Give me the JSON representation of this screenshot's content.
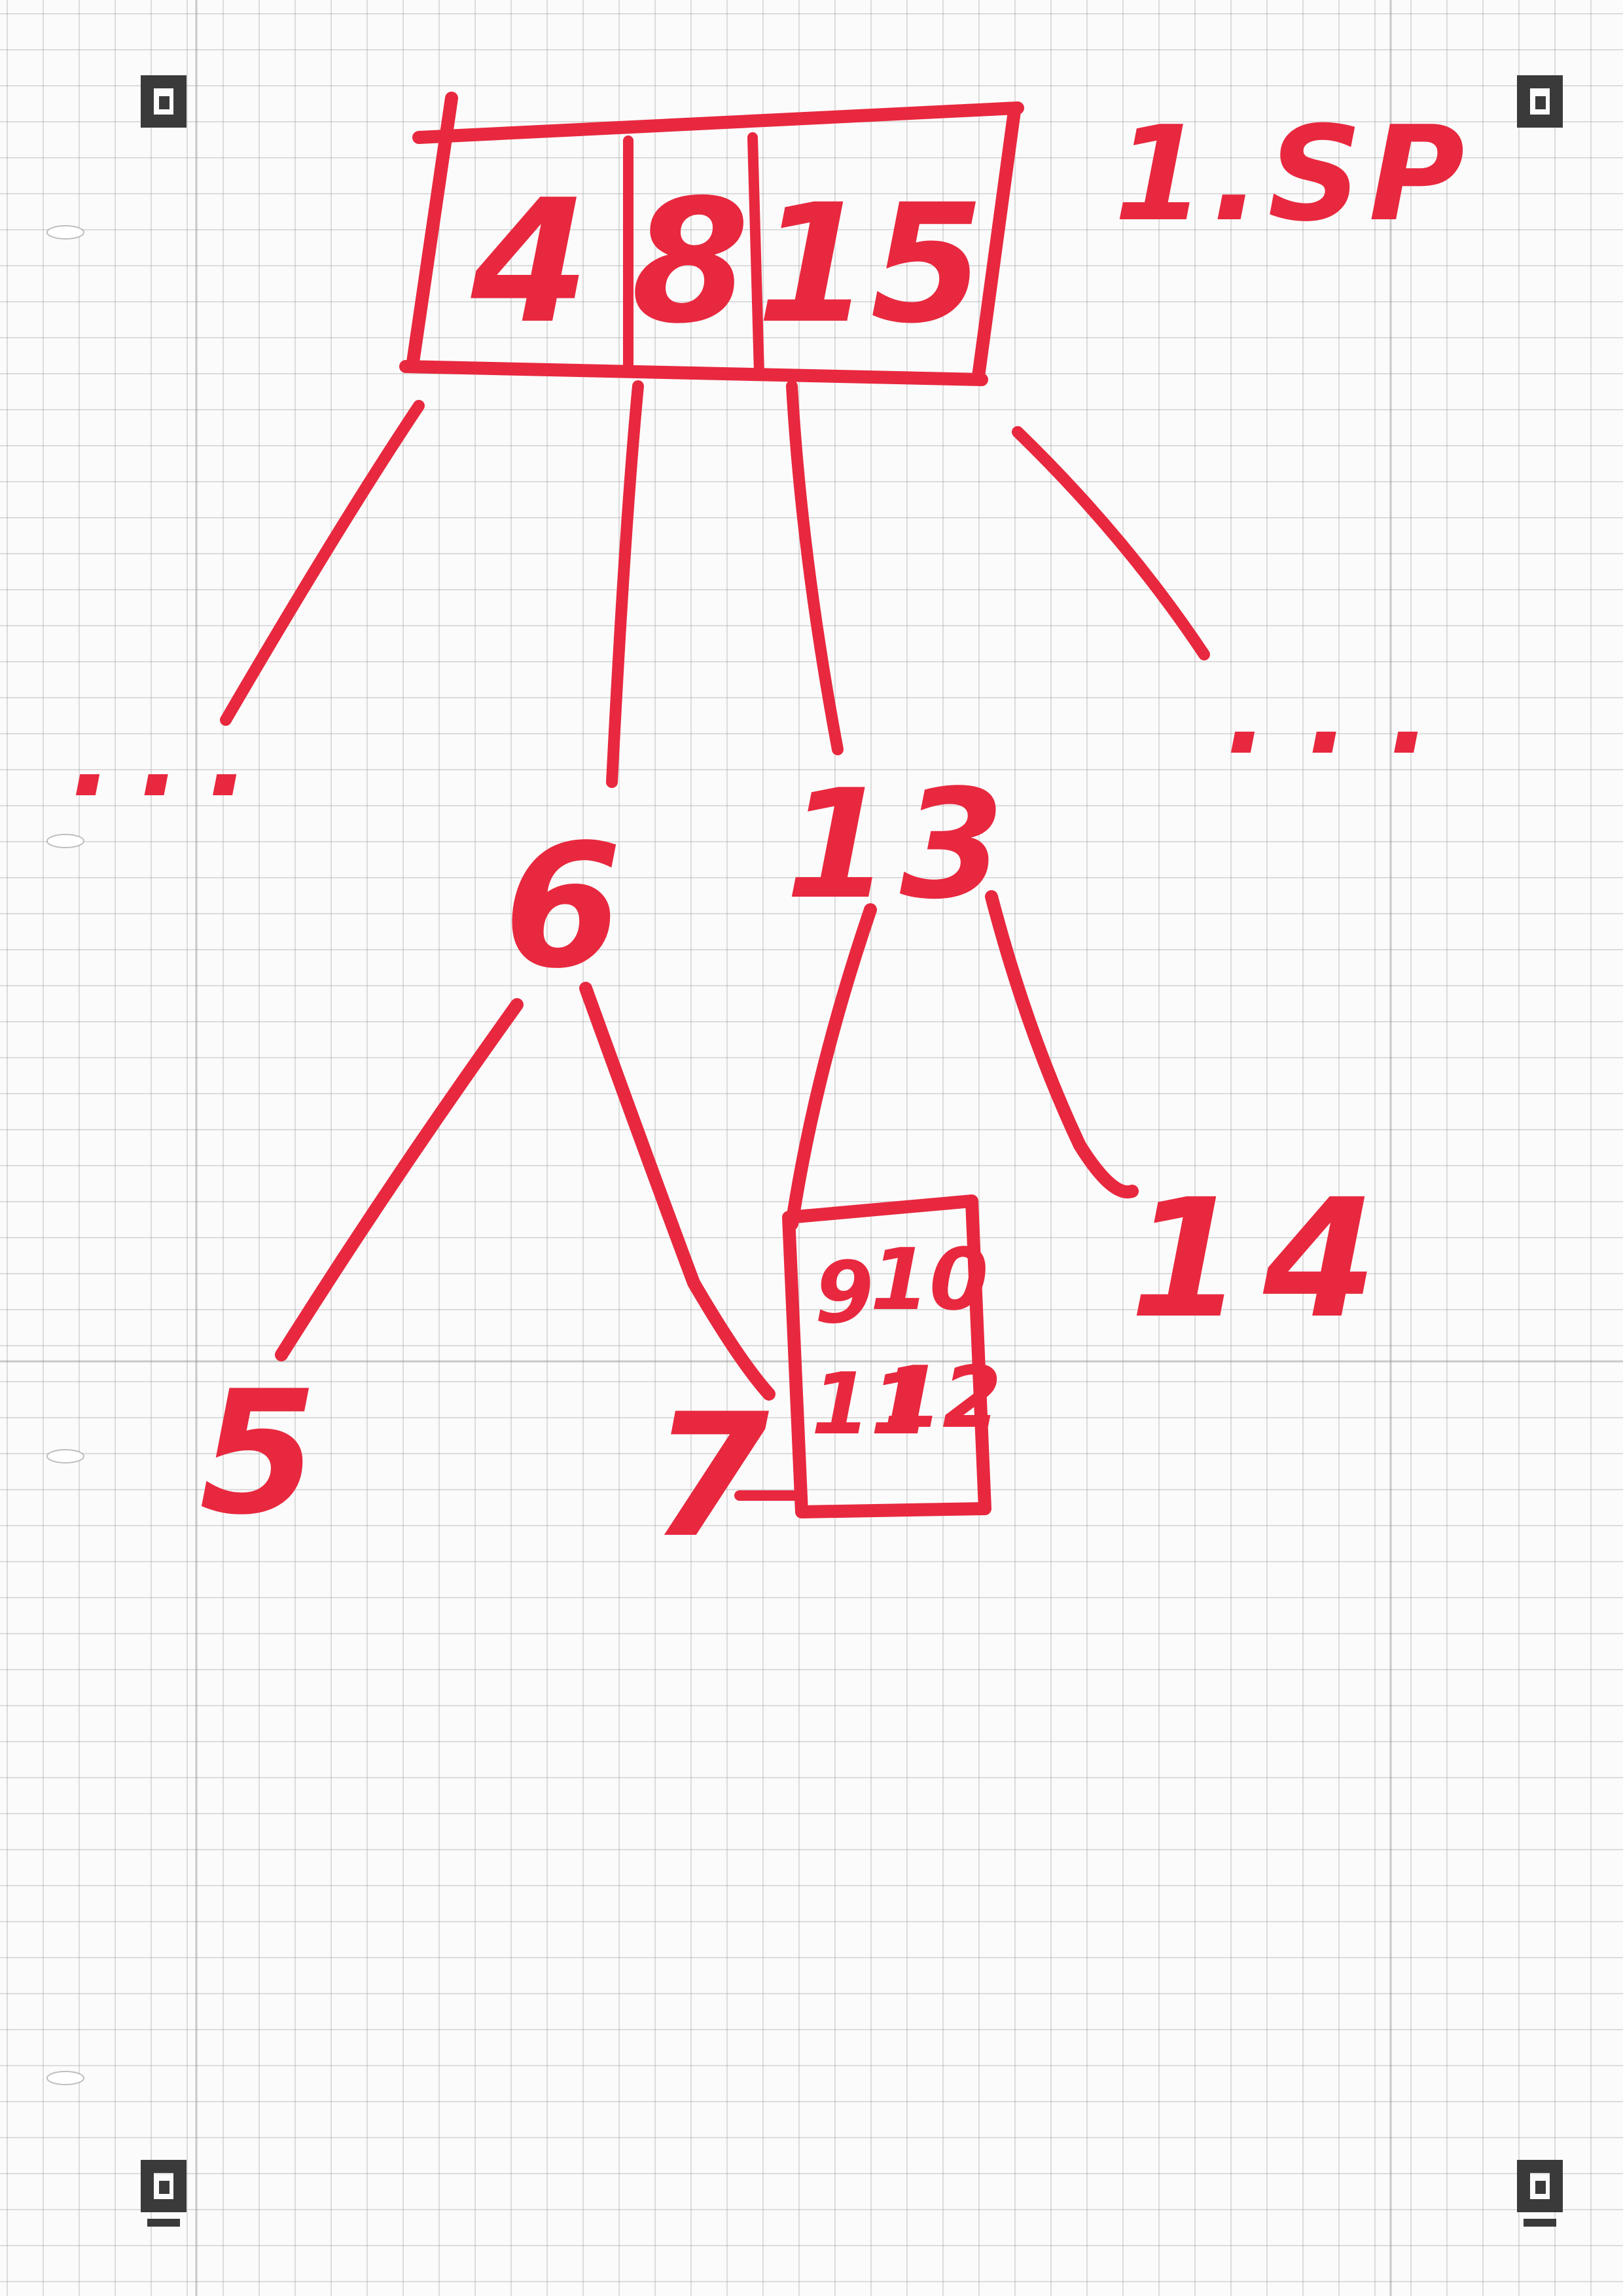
{
  "colors": {
    "ink": "#e8283e",
    "grid": "#c8c8c8",
    "marker": "#3a3a3a",
    "paper": "#fbfbfb"
  },
  "page_label": "1.SP",
  "root": {
    "keys": [
      "4",
      "8",
      "15"
    ]
  },
  "ellipsis_left": "...",
  "ellipsis_right": "...",
  "nodes": {
    "n6": "6",
    "n13": "13",
    "n5": "5",
    "n7": "7",
    "n14": "14",
    "boxed_values": [
      "9",
      "10",
      "11",
      "12"
    ]
  },
  "corner_markers": [
    "corner-marker-icon",
    "corner-marker-icon",
    "corner-marker-icon",
    "corner-marker-icon"
  ]
}
